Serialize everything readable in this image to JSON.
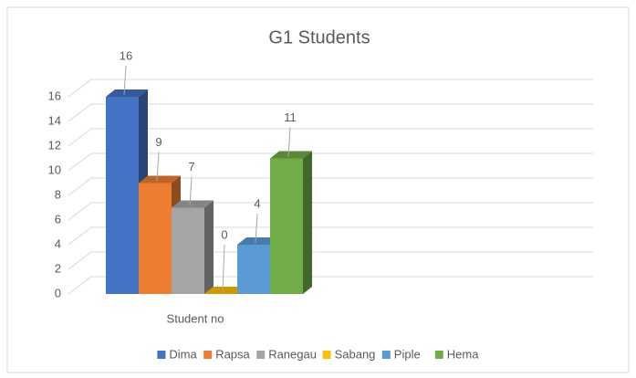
{
  "chart_data": {
    "type": "bar3d",
    "title": "G1 Students",
    "categories": [
      "Student no"
    ],
    "series": [
      {
        "name": "Dima",
        "color": "#4472c4",
        "values": [
          16
        ]
      },
      {
        "name": "Rapsa",
        "color": "#ed7d31",
        "values": [
          9
        ]
      },
      {
        "name": "Ranegau",
        "color": "#a5a5a5",
        "values": [
          7
        ]
      },
      {
        "name": "Sabang",
        "color": "#ffc000",
        "values": [
          0
        ]
      },
      {
        "name": "Piple",
        "color": "#5b9bd5",
        "values": [
          4
        ]
      },
      {
        "name": "Hema",
        "color": "#70ad47",
        "values": [
          11
        ]
      }
    ],
    "ylim": [
      0,
      16
    ],
    "yticks": [
      0,
      2,
      4,
      6,
      8,
      10,
      12,
      14,
      16
    ],
    "grid": true,
    "legend": "bottom"
  }
}
